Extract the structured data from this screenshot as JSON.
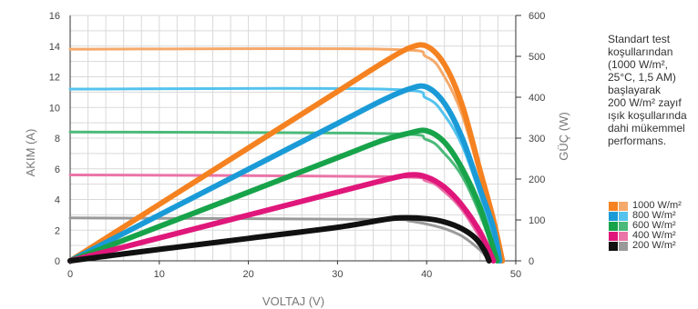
{
  "chart_data": {
    "type": "line",
    "xlabel": "VOLTAJ (V)",
    "ylabel": "AKIM (A)",
    "y2label": "GÜÇ (W)",
    "xlim": [
      0,
      50
    ],
    "ylim": [
      0,
      16
    ],
    "y2lim": [
      0,
      600
    ],
    "x_ticks": [
      "0",
      "10",
      "20",
      "30",
      "40",
      "50"
    ],
    "y_ticks": [
      "0",
      "2",
      "4",
      "6",
      "8",
      "10",
      "12",
      "14",
      "16"
    ],
    "y2_ticks": [
      "0",
      "100",
      "200",
      "300",
      "400",
      "500",
      "600"
    ],
    "grid": true,
    "series": [
      {
        "name": "1000 W/m²",
        "kind": "current",
        "color": "#f5a96a",
        "x": [
          0,
          35,
          40,
          42,
          44,
          46,
          47,
          48,
          48.5
        ],
        "y": [
          13.8,
          13.8,
          13.3,
          12,
          9.5,
          5.5,
          3,
          0.8,
          0
        ]
      },
      {
        "name": "1000 W/m²",
        "kind": "power",
        "color": "#f58220",
        "x": [
          0,
          10,
          20,
          30,
          35,
          38,
          40,
          42,
          44,
          46,
          47.5,
          48.5
        ],
        "y": [
          0,
          138,
          276,
          414,
          483,
          520,
          525,
          480,
          380,
          220,
          100,
          0
        ]
      },
      {
        "name": "800 W/m²",
        "kind": "current",
        "color": "#55c3ee",
        "x": [
          0,
          35,
          40,
          42,
          44,
          46,
          47,
          48.2
        ],
        "y": [
          11.2,
          11.2,
          10.6,
          9.5,
          7.5,
          4.3,
          2.3,
          0
        ]
      },
      {
        "name": "800 W/m²",
        "kind": "power",
        "color": "#1a9bd7",
        "x": [
          0,
          10,
          20,
          30,
          35,
          38,
          40,
          42,
          44,
          46,
          47.5,
          48.2
        ],
        "y": [
          0,
          112,
          224,
          336,
          392,
          420,
          425,
          385,
          300,
          175,
          80,
          0
        ]
      },
      {
        "name": "600 W/m²",
        "kind": "current",
        "color": "#4cba7a",
        "x": [
          0,
          35,
          40,
          42,
          44,
          46,
          47.9
        ],
        "y": [
          8.4,
          8.3,
          7.9,
          7,
          5.5,
          3,
          0
        ]
      },
      {
        "name": "600 W/m²",
        "kind": "power",
        "color": "#17a34a",
        "x": [
          0,
          10,
          20,
          30,
          35,
          38,
          40,
          42,
          44,
          46,
          47.9
        ],
        "y": [
          0,
          84,
          168,
          252,
          294,
          312,
          318,
          290,
          225,
          130,
          0
        ]
      },
      {
        "name": "400 W/m²",
        "kind": "current",
        "color": "#ea74a8",
        "x": [
          0,
          35,
          40,
          42,
          44,
          46,
          47.5
        ],
        "y": [
          5.6,
          5.5,
          5.2,
          4.5,
          3.3,
          1.5,
          0
        ]
      },
      {
        "name": "400 W/m²",
        "kind": "power",
        "color": "#e0177b",
        "x": [
          0,
          10,
          20,
          30,
          35,
          38,
          40,
          42,
          44,
          46,
          47.5
        ],
        "y": [
          0,
          56,
          112,
          168,
          196,
          210,
          205,
          180,
          135,
          70,
          0
        ]
      },
      {
        "name": "200 W/m²",
        "kind": "current",
        "color": "#9a9a9a",
        "x": [
          0,
          35,
          38,
          40,
          42,
          44,
          46,
          47
        ],
        "y": [
          2.8,
          2.7,
          2.6,
          2.4,
          2.1,
          1.6,
          0.7,
          0
        ]
      },
      {
        "name": "200 W/m²",
        "kind": "power",
        "color": "#111111",
        "x": [
          0,
          10,
          20,
          30,
          35,
          37,
          40,
          42,
          44,
          45.5,
          46.5,
          47
        ],
        "y": [
          0,
          28,
          55,
          82,
          100,
          105,
          103,
          95,
          78,
          55,
          25,
          0
        ]
      }
    ]
  },
  "side_note": "Standart test\nkoşullarından\n(1000 W/m²,\n25°C, 1,5 AM)\nbaşlayarak\n200 W/m² zayıf\nışık koşullarında\ndahi mükemmel\nperformans.",
  "legend": [
    {
      "label": "1000 W/m²",
      "dark": "#f58220",
      "light": "#f5a96a"
    },
    {
      "label": "800 W/m²",
      "dark": "#1a9bd7",
      "light": "#55c3ee"
    },
    {
      "label": "600 W/m²",
      "dark": "#17a34a",
      "light": "#4cba7a"
    },
    {
      "label": "400 W/m²",
      "dark": "#e0177b",
      "light": "#ea74a8"
    },
    {
      "label": "200 W/m²",
      "dark": "#111111",
      "light": "#9a9a9a"
    }
  ]
}
